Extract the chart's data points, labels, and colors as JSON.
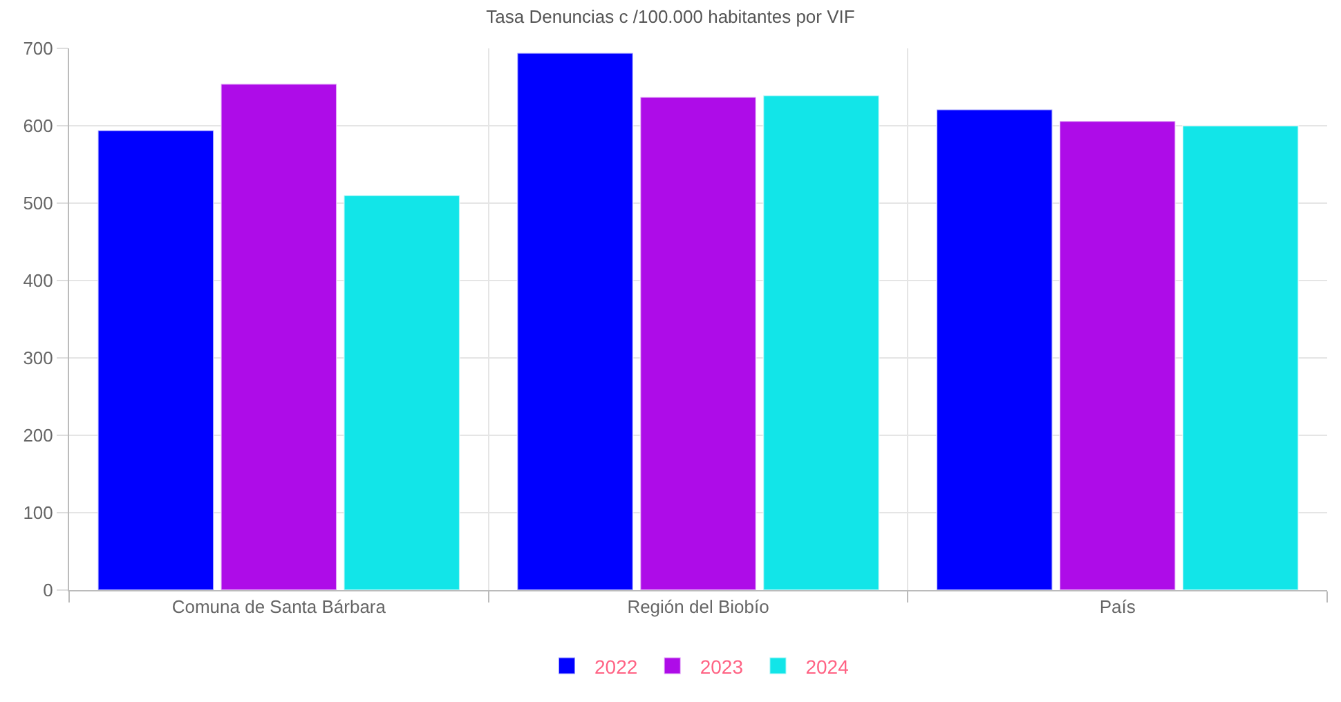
{
  "chart_data": {
    "type": "bar",
    "title": "Tasa Denuncias c /100.000 habitantes por VIF",
    "categories": [
      "Comuna de Santa Bárbara",
      "Región del Biobío",
      "País"
    ],
    "series": [
      {
        "name": "2022",
        "color": "#0000ff",
        "values": [
          594,
          694,
          621
        ]
      },
      {
        "name": "2023",
        "color": "#ae0ce8",
        "values": [
          654,
          637,
          606
        ]
      },
      {
        "name": "2024",
        "color": "#12e5e8",
        "values": [
          510,
          639,
          600
        ]
      }
    ],
    "ylim": [
      0,
      700
    ],
    "yticks": [
      0,
      100,
      200,
      300,
      400,
      500,
      600,
      700
    ],
    "grid": true,
    "legend": "bottom"
  }
}
